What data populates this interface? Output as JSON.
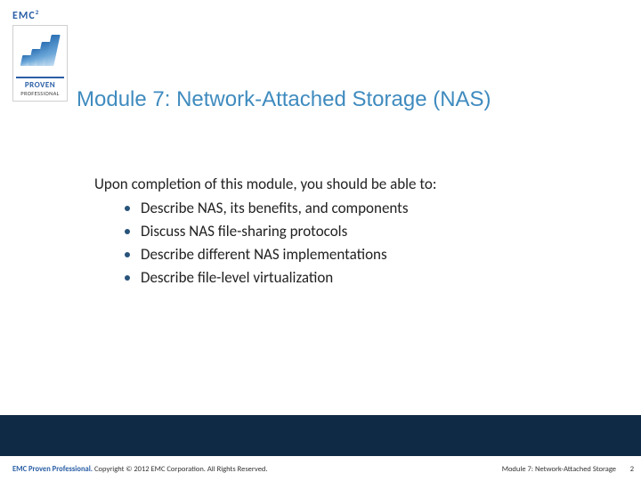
{
  "logo": {
    "brand": "EMC",
    "sup": "2",
    "badge_line1": "PROVEN",
    "badge_line2": "PROFESSIONAL"
  },
  "title": "Module 7: Network-Attached Storage (NAS)",
  "body": {
    "lead": "Upon completion of this module, you should be able to:",
    "bullets": [
      "Describe NAS, its benefits, and components",
      "Discuss NAS file-sharing protocols",
      "Describe different NAS implementations",
      "Describe file-level virtualization"
    ]
  },
  "footer": {
    "left_emph": "EMC Proven Professional.",
    "left_rest": " Copyright © 2012 EMC Corporation. All Rights Reserved.",
    "module": "Module 7: Network-Attached Storage",
    "page": "2"
  },
  "colors": {
    "title": "#3f8bbf",
    "bullet": "#28537a",
    "footer_bar": "#0f2a44",
    "brand": "#2b5fa6"
  }
}
